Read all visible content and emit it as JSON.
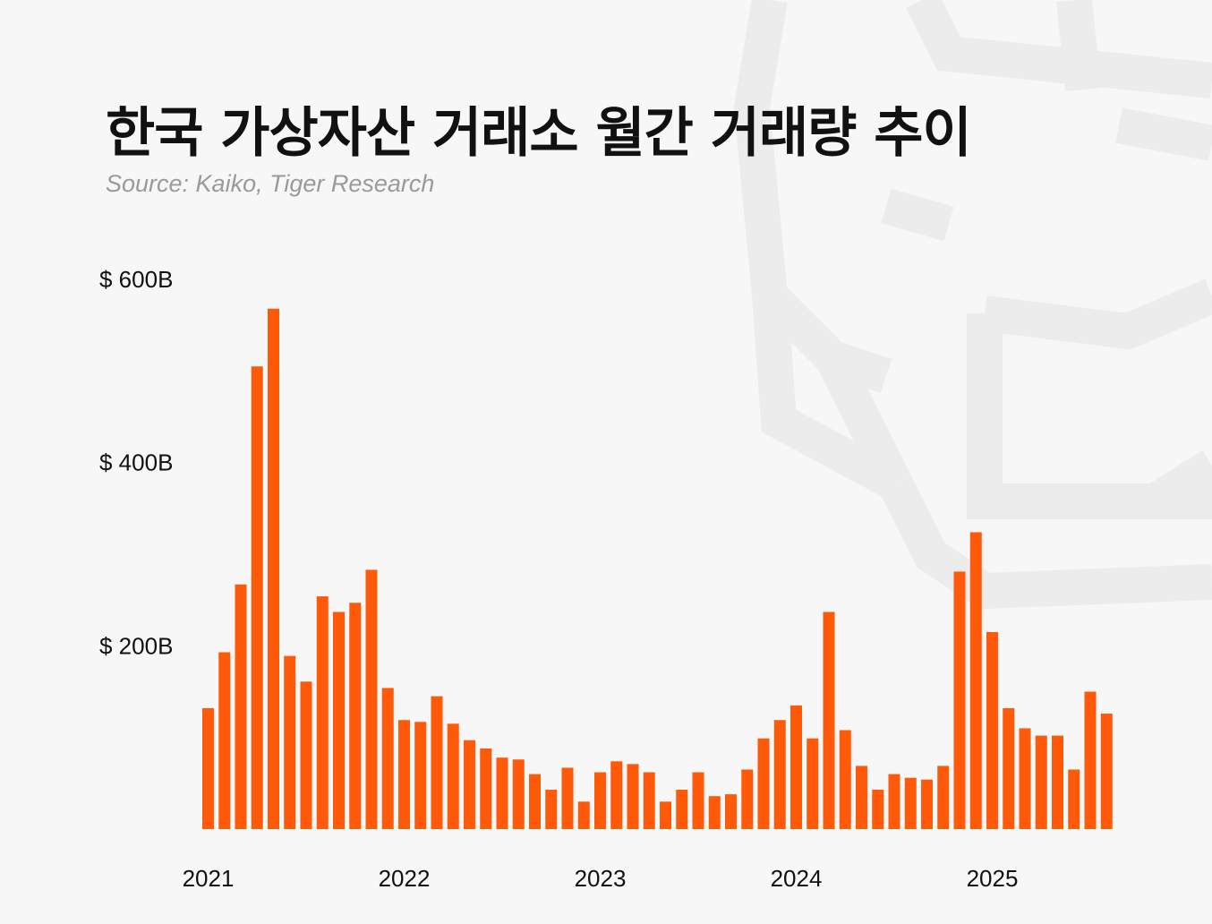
{
  "header": {
    "title": "한국 가상자산 거래소 월간 거래량 추이",
    "subtitle": "Source: Kaiko, Tiger Research"
  },
  "colors": {
    "bar": "#ff5a0a",
    "background": "#f7f7f7",
    "watermark": "#ececec",
    "text": "#111111",
    "subtitle": "#9a9a9a"
  },
  "chart_data": {
    "type": "bar",
    "title": "",
    "xlabel": "",
    "ylabel": "",
    "ylim": [
      0,
      600
    ],
    "grid": false,
    "legend": "none",
    "y_ticks": [
      {
        "value": 200,
        "label": "$ 200B"
      },
      {
        "value": 400,
        "label": "$ 400B"
      },
      {
        "value": 600,
        "label": "$ 600B"
      }
    ],
    "x_ticks": [
      {
        "index": 0,
        "label": "2021"
      },
      {
        "index": 12,
        "label": "2022"
      },
      {
        "index": 24,
        "label": "2023"
      },
      {
        "index": 36,
        "label": "2024"
      },
      {
        "index": 48,
        "label": "2025"
      }
    ],
    "series": [
      {
        "values": [
          132,
          193,
          267,
          505,
          568,
          189,
          161,
          254,
          237,
          247,
          283,
          154,
          119,
          117,
          145,
          115,
          97,
          88,
          78,
          76,
          60,
          43,
          67,
          30,
          62,
          74,
          71,
          62,
          30,
          43,
          62,
          36,
          38,
          65,
          99,
          119,
          135,
          99,
          237,
          108,
          69,
          43,
          60,
          56,
          54,
          69,
          281,
          324,
          215,
          132,
          110,
          102,
          102,
          65,
          150,
          126
        ]
      }
    ]
  }
}
